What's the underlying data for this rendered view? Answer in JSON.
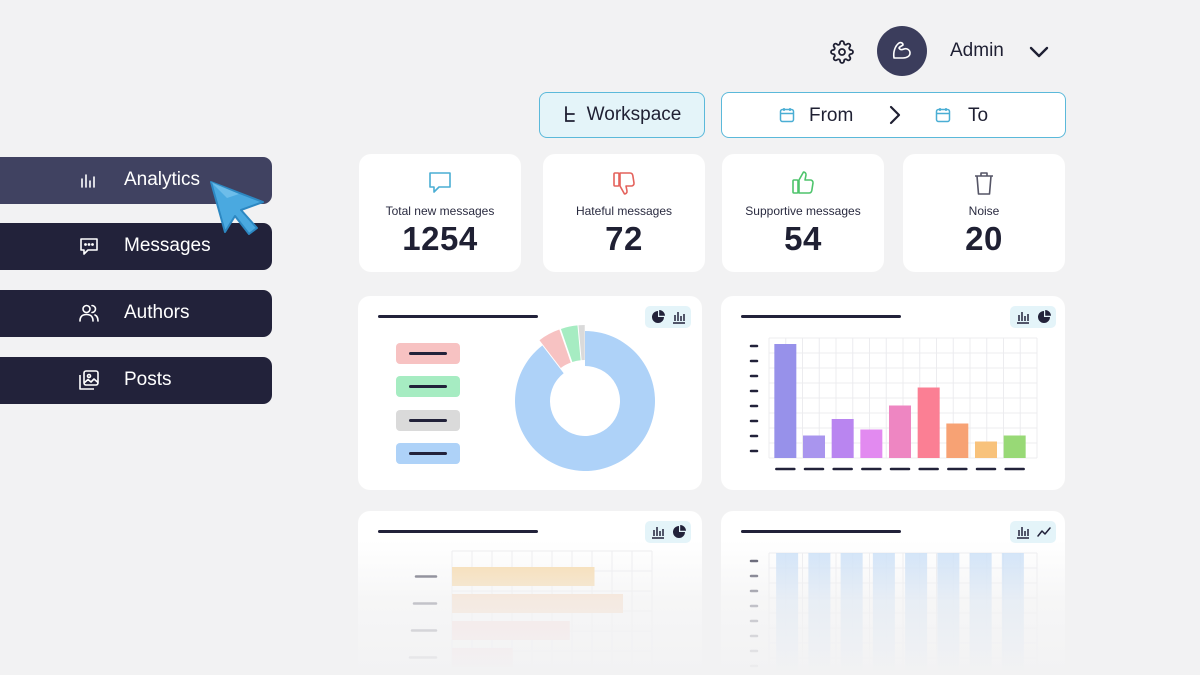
{
  "header": {
    "user_name": "Admin",
    "settings_icon": "gear-icon",
    "avatar_icon": "flexed-arm-icon",
    "menu_icon": "chevron-down-icon"
  },
  "filters": {
    "workspace_label": "Workspace",
    "date_from_label": "From",
    "date_to_label": "To"
  },
  "sidebar": {
    "items": [
      {
        "label": "Analytics",
        "icon": "bar-chart-icon",
        "active": true
      },
      {
        "label": "Messages",
        "icon": "message-icon",
        "active": false
      },
      {
        "label": "Authors",
        "icon": "users-icon",
        "active": false
      },
      {
        "label": "Posts",
        "icon": "image-icon",
        "active": false
      }
    ]
  },
  "stats": [
    {
      "label": "Total new messages",
      "value": "1254",
      "icon": "message-bubble-icon",
      "color": "#4aaed4"
    },
    {
      "label": "Hateful messages",
      "value": "72",
      "icon": "thumbs-down-icon",
      "color": "#e4625c"
    },
    {
      "label": "Supportive messages",
      "value": "54",
      "icon": "thumbs-up-icon",
      "color": "#4ec46c"
    },
    {
      "label": "Noise",
      "value": "20",
      "icon": "trash-icon",
      "color": "#555566"
    }
  ],
  "colors": {
    "accent": "#5bb9da",
    "sidebar_bg": "#22223a",
    "sidebar_active": "#404261",
    "page_bg": "#f2f2f3"
  },
  "chart_data": [
    {
      "type": "pie",
      "values": [
        1254,
        72,
        54,
        20
      ],
      "colors": [
        "#aed2f8",
        "#f7c2c2",
        "#a6ecc2",
        "#dadada"
      ],
      "legend_colors": [
        "#f7c2c2",
        "#a6ecc2",
        "#dadada",
        "#aed2f8"
      ],
      "legend": "left"
    },
    {
      "type": "bar",
      "values": [
        7.6,
        1.5,
        2.6,
        1.9,
        3.5,
        4.7,
        2.3,
        1.1,
        1.5
      ],
      "colors": [
        "#9791ea",
        "#a995ee",
        "#b985f0",
        "#e28af0",
        "#ee86c2",
        "#fb7f94",
        "#f7a274",
        "#f8c27b",
        "#98d976"
      ],
      "ylim": [
        0,
        8
      ],
      "grid": true
    },
    {
      "type": "bar",
      "orientation": "horizontal",
      "values": [
        7.5,
        9,
        6.2,
        3.2
      ],
      "colors": [
        "#f8d9a7",
        "#fad6b8",
        "#fcd4d1",
        "#fcd0d8"
      ],
      "xlim": [
        0,
        10
      ],
      "grid": true
    },
    {
      "type": "bar",
      "values": [
        8,
        8,
        8,
        8,
        8,
        8,
        8,
        8
      ],
      "colors": [
        "#c7def8",
        "#c7def8",
        "#c7def8",
        "#c7def8",
        "#c7def8",
        "#c7def8",
        "#c7def8",
        "#c7def8"
      ],
      "ylim": [
        0,
        8
      ],
      "grid": true
    }
  ]
}
